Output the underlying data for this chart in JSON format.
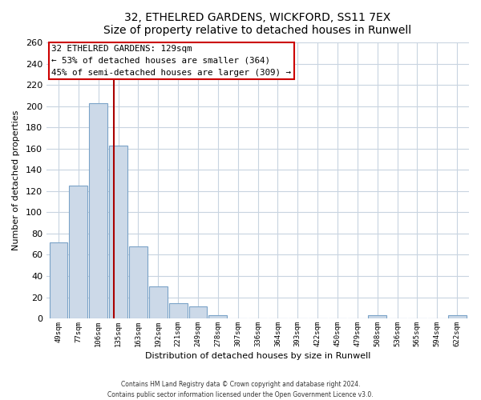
{
  "title": "32, ETHELRED GARDENS, WICKFORD, SS11 7EX",
  "subtitle": "Size of property relative to detached houses in Runwell",
  "xlabel": "Distribution of detached houses by size in Runwell",
  "ylabel": "Number of detached properties",
  "bar_labels": [
    "49sqm",
    "77sqm",
    "106sqm",
    "135sqm",
    "163sqm",
    "192sqm",
    "221sqm",
    "249sqm",
    "278sqm",
    "307sqm",
    "336sqm",
    "364sqm",
    "393sqm",
    "422sqm",
    "450sqm",
    "479sqm",
    "508sqm",
    "536sqm",
    "565sqm",
    "594sqm",
    "622sqm"
  ],
  "bar_values": [
    72,
    125,
    203,
    163,
    68,
    30,
    14,
    11,
    3,
    0,
    0,
    0,
    0,
    0,
    0,
    0,
    3,
    0,
    0,
    0,
    3
  ],
  "bar_color": "#ccd9e8",
  "bar_edge_color": "#7ba3c8",
  "vline_x": 2.78,
  "vline_color": "#aa0000",
  "annotation_title": "32 ETHELRED GARDENS: 129sqm",
  "annotation_line1": "← 53% of detached houses are smaller (364)",
  "annotation_line2": "45% of semi-detached houses are larger (309) →",
  "annotation_box_facecolor": "#ffffff",
  "annotation_box_edgecolor": "#cc0000",
  "ylim": [
    0,
    260
  ],
  "yticks": [
    0,
    20,
    40,
    60,
    80,
    100,
    120,
    140,
    160,
    180,
    200,
    220,
    240,
    260
  ],
  "footer_line1": "Contains HM Land Registry data © Crown copyright and database right 2024.",
  "footer_line2": "Contains public sector information licensed under the Open Government Licence v3.0.",
  "bg_color": "#ffffff",
  "grid_color": "#c8d4e0"
}
